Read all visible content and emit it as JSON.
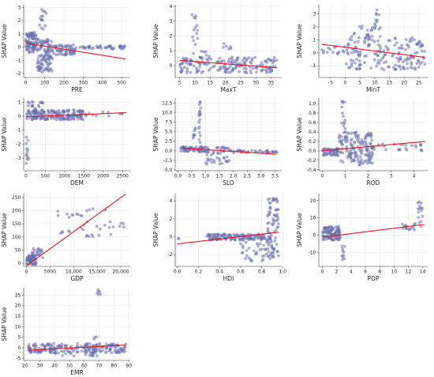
{
  "colors": {
    "points": "#6a6fae",
    "fit": "#e8141c",
    "grid": "#e9e9ef"
  },
  "chart_data": [
    {
      "type": "scatter",
      "xlabel": "PRE",
      "ylabel": "SHAP Value",
      "xlim": [
        -10,
        545
      ],
      "ylim": [
        -2.3,
        3.2
      ],
      "xticks": [
        "0",
        "100",
        "200",
        "300",
        "400",
        "500"
      ],
      "xtickValues": [
        0,
        100,
        200,
        300,
        400,
        500
      ],
      "yticks": [
        "-2",
        "-1",
        "0",
        "1",
        "2",
        "3"
      ],
      "ytickValues": [
        -2,
        -1,
        0,
        1,
        2,
        3
      ],
      "trend": {
        "x": [
          0,
          520
        ],
        "y": [
          0.3,
          -0.9
        ]
      },
      "clusters": [
        {
          "x": [
            0,
            60
          ],
          "y": [
            -0.4,
            1.1
          ],
          "n": 90
        },
        {
          "x": [
            60,
            140
          ],
          "y": [
            -1.9,
            0.6
          ],
          "n": 110
        },
        {
          "x": [
            70,
            110
          ],
          "y": [
            1.3,
            2.9
          ],
          "n": 14
        },
        {
          "x": [
            140,
            260
          ],
          "y": [
            -0.6,
            0.2
          ],
          "n": 60
        },
        {
          "x": [
            260,
            520
          ],
          "y": [
            -0.15,
            0.1
          ],
          "n": 45
        }
      ]
    },
    {
      "type": "scatter",
      "xlabel": "MaxT",
      "ylabel": "SHAP Value",
      "xlim": [
        3.5,
        38.5
      ],
      "ylim": [
        -0.8,
        4.1
      ],
      "xticks": [
        "5",
        "10",
        "15",
        "20",
        "25",
        "30",
        "35"
      ],
      "xtickValues": [
        5,
        10,
        15,
        20,
        25,
        30,
        35
      ],
      "yticks": [
        "0",
        "1",
        "2",
        "3",
        "4"
      ],
      "ytickValues": [
        0,
        1,
        2,
        3,
        4
      ],
      "trend": {
        "x": [
          5,
          37
        ],
        "y": [
          0.35,
          -0.15
        ]
      },
      "clusters": [
        {
          "x": [
            5,
            37
          ],
          "y": [
            -0.5,
            0.6
          ],
          "n": 180
        },
        {
          "x": [
            9,
            11
          ],
          "y": [
            0.8,
            3.9
          ],
          "n": 14
        },
        {
          "x": [
            19,
            22
          ],
          "y": [
            0.8,
            1.6
          ],
          "n": 6
        },
        {
          "x": [
            12,
            16
          ],
          "y": [
            0.5,
            1.0
          ],
          "n": 6
        }
      ]
    },
    {
      "type": "scatter",
      "xlabel": "MinT",
      "ylabel": "SHAP Value",
      "xlim": [
        -9,
        28
      ],
      "ylim": [
        -1.9,
        3.7
      ],
      "xticks": [
        "-5",
        "0",
        "5",
        "10",
        "15",
        "20",
        "25"
      ],
      "xtickValues": [
        -5,
        0,
        5,
        10,
        15,
        20,
        25
      ],
      "yticks": [
        "-1",
        "0",
        "1",
        "2",
        "3"
      ],
      "ytickValues": [
        -1,
        0,
        1,
        2,
        3
      ],
      "trend": {
        "x": [
          -8,
          27
        ],
        "y": [
          0.65,
          -0.35
        ]
      },
      "clusters": [
        {
          "x": [
            -8,
            0
          ],
          "y": [
            -0.1,
            0.5
          ],
          "n": 15
        },
        {
          "x": [
            0,
            27
          ],
          "y": [
            -1.3,
            1.2
          ],
          "n": 170
        },
        {
          "x": [
            2,
            12
          ],
          "y": [
            0.8,
            2.2
          ],
          "n": 25
        },
        {
          "x": [
            10,
            12
          ],
          "y": [
            2.2,
            3.4
          ],
          "n": 8
        }
      ]
    },
    {
      "type": "scatter",
      "xlabel": "DEM",
      "ylabel": "SHAP Value",
      "xlim": [
        -60,
        2700
      ],
      "ylim": [
        -3.9,
        1.3
      ],
      "xticks": [
        "0",
        "500",
        "1000",
        "1500",
        "2000",
        "2500"
      ],
      "xtickValues": [
        0,
        500,
        1000,
        1500,
        2000,
        2500
      ],
      "yticks": [
        "-3",
        "-2",
        "-1",
        "0",
        "1"
      ],
      "ytickValues": [
        -3,
        -2,
        -1,
        0,
        1
      ],
      "trend": {
        "x": [
          0,
          2600
        ],
        "y": [
          -0.05,
          0.25
        ]
      },
      "clusters": [
        {
          "x": [
            0,
            1500
          ],
          "y": [
            -0.25,
            0.45
          ],
          "n": 180
        },
        {
          "x": [
            50,
            450
          ],
          "y": [
            0.4,
            1.1
          ],
          "n": 20
        },
        {
          "x": [
            0,
            60
          ],
          "y": [
            -3.7,
            -1.0
          ],
          "n": 12
        },
        {
          "x": [
            1500,
            2600
          ],
          "y": [
            -0.05,
            0.3
          ],
          "n": 12
        }
      ]
    },
    {
      "type": "scatter",
      "xlabel": "SLO",
      "ylabel": "SHAP Value",
      "xlim": [
        -0.1,
        3.75
      ],
      "ylim": [
        -5.2,
        13.8
      ],
      "xticks": [
        "0.0",
        "0.5",
        "1.0",
        "1.5",
        "2.0",
        "2.5",
        "3.0",
        "3.5"
      ],
      "xtickValues": [
        0,
        0.5,
        1,
        1.5,
        2,
        2.5,
        3,
        3.5
      ],
      "yticks": [
        "-5.0",
        "-2.5",
        "0.0",
        "2.5",
        "5.0",
        "7.5",
        "10.0",
        "12.5"
      ],
      "ytickValues": [
        -5,
        -2.5,
        0,
        2.5,
        5,
        7.5,
        10,
        12.5
      ],
      "trend": {
        "x": [
          0.15,
          3.55
        ],
        "y": [
          0.7,
          -0.9
        ]
      },
      "clusters": [
        {
          "x": [
            0.1,
            1.0
          ],
          "y": [
            -0.3,
            1.2
          ],
          "n": 60
        },
        {
          "x": [
            0.75,
            0.85
          ],
          "y": [
            2,
            12.8
          ],
          "n": 18
        },
        {
          "x": [
            0.55,
            0.65
          ],
          "y": [
            1,
            6
          ],
          "n": 8
        },
        {
          "x": [
            1.0,
            1.9
          ],
          "y": [
            -3.5,
            1.0
          ],
          "n": 50
        },
        {
          "x": [
            1.9,
            3.6
          ],
          "y": [
            -0.5,
            0.2
          ],
          "n": 35
        }
      ]
    },
    {
      "type": "scatter",
      "xlabel": "ROD",
      "ylabel": "SHAP Value",
      "xlim": [
        -0.15,
        4.6
      ],
      "ylim": [
        -0.42,
        1.12
      ],
      "xticks": [
        "0",
        "1",
        "2",
        "3",
        "4"
      ],
      "xtickValues": [
        0,
        1,
        2,
        3,
        4
      ],
      "yticks": [
        "-0.4",
        "-0.2",
        "0.0",
        "0.2",
        "0.4",
        "0.6",
        "0.8",
        "1.0"
      ],
      "ytickValues": [
        -0.4,
        -0.2,
        0,
        0.2,
        0.4,
        0.6,
        0.8,
        1.0
      ],
      "trend": {
        "x": [
          0,
          4.5
        ],
        "y": [
          0.0,
          0.2
        ]
      },
      "clusters": [
        {
          "x": [
            0,
            0.7
          ],
          "y": [
            -0.1,
            0.05
          ],
          "n": 50
        },
        {
          "x": [
            0.7,
            2.2
          ],
          "y": [
            -0.3,
            0.4
          ],
          "n": 150
        },
        {
          "x": [
            0.85,
            1.0
          ],
          "y": [
            0.4,
            1.1
          ],
          "n": 14
        },
        {
          "x": [
            2.2,
            4.4
          ],
          "y": [
            0.0,
            0.15
          ],
          "n": 25
        }
      ]
    },
    {
      "type": "scatter",
      "xlabel": "GDP",
      "ylabel": "SHAP Value",
      "xlim": [
        -600,
        22000
      ],
      "ylim": [
        -12,
        265
      ],
      "xticks": [
        "0",
        "5000",
        "10,000",
        "15,000",
        "20,000"
      ],
      "xtickValues": [
        0,
        5000,
        10000,
        15000,
        20000
      ],
      "yticks": [
        "0",
        "50",
        "100",
        "150",
        "200",
        "250"
      ],
      "ytickValues": [
        0,
        50,
        100,
        150,
        200,
        250
      ],
      "trend": {
        "x": [
          0,
          21000
        ],
        "y": [
          -10,
          263
        ]
      },
      "clusters": [
        {
          "x": [
            0,
            2000
          ],
          "y": [
            -5,
            30
          ],
          "n": 60
        },
        {
          "x": [
            1000,
            3500
          ],
          "y": [
            10,
            55
          ],
          "n": 25
        },
        {
          "x": [
            4000,
            21000
          ],
          "y": [
            100,
            210
          ],
          "n": 40
        }
      ]
    },
    {
      "type": "scatter",
      "xlabel": "HDI",
      "ylabel": "SHAP Value",
      "xlim": [
        -0.02,
        0.99
      ],
      "ylim": [
        -3.3,
        4.8
      ],
      "xticks": [
        "0.0",
        "0.2",
        "0.4",
        "0.6",
        "0.8",
        "1.0"
      ],
      "xtickValues": [
        0,
        0.2,
        0.4,
        0.6,
        0.8,
        1.0
      ],
      "yticks": [
        "-2",
        "0",
        "2",
        "4"
      ],
      "ytickValues": [
        -2,
        0,
        2,
        4
      ],
      "trend": {
        "x": [
          0,
          0.96
        ],
        "y": [
          -0.8,
          0.5
        ]
      },
      "clusters": [
        {
          "x": [
            0.28,
            0.85
          ],
          "y": [
            -0.4,
            0.3
          ],
          "n": 120
        },
        {
          "x": [
            0.6,
            0.9
          ],
          "y": [
            -2.8,
            0.2
          ],
          "n": 50
        },
        {
          "x": [
            0.85,
            0.96
          ],
          "y": [
            -2.5,
            4.3
          ],
          "n": 80
        },
        {
          "x": [
            0,
            0.02
          ],
          "y": [
            -0.3,
            0.0
          ],
          "n": 2
        }
      ]
    },
    {
      "type": "scatter",
      "xlabel": "POP",
      "ylabel": "SHAP Value",
      "xlim": [
        -0.5,
        14.7
      ],
      "ylim": [
        -18,
        24
      ],
      "xticks": [
        "0",
        "2",
        "4",
        "6",
        "8",
        "10",
        "12",
        "14"
      ],
      "xtickValues": [
        0,
        2,
        4,
        6,
        8,
        10,
        12,
        14
      ],
      "yticks": [
        "-10",
        "0",
        "10",
        "20"
      ],
      "ytickValues": [
        -10,
        0,
        10,
        20
      ],
      "trend": {
        "x": [
          0,
          14.2
        ],
        "y": [
          -1.2,
          6.2
        ]
      },
      "clusters": [
        {
          "x": [
            0,
            2.5
          ],
          "y": [
            -3,
            5
          ],
          "n": 100
        },
        {
          "x": [
            2.7,
            3.2
          ],
          "y": [
            -16,
            -6
          ],
          "n": 10
        },
        {
          "x": [
            11,
            13
          ],
          "y": [
            3,
            7
          ],
          "n": 15
        },
        {
          "x": [
            13.3,
            14
          ],
          "y": [
            5,
            21
          ],
          "n": 15
        }
      ]
    },
    {
      "type": "scatter",
      "xlabel": "EMR",
      "ylabel": "SHAP Value",
      "xlim": [
        19,
        91
      ],
      "ylim": [
        -6,
        28.5
      ],
      "xticks": [
        "20",
        "30",
        "40",
        "50",
        "60",
        "70",
        "80",
        "90"
      ],
      "xtickValues": [
        20,
        30,
        40,
        50,
        60,
        70,
        80,
        90
      ],
      "yticks": [
        "-5",
        "0",
        "5",
        "10",
        "15",
        "20",
        "25"
      ],
      "ytickValues": [
        -5,
        0,
        5,
        10,
        15,
        20,
        25
      ],
      "trend": {
        "x": [
          22,
          88
        ],
        "y": [
          -1.2,
          1.3
        ]
      },
      "clusters": [
        {
          "x": [
            22,
            88
          ],
          "y": [
            -2.5,
            2.0
          ],
          "n": 200
        },
        {
          "x": [
            40,
            70
          ],
          "y": [
            -4,
            -1.5
          ],
          "n": 20
        },
        {
          "x": [
            68,
            71
          ],
          "y": [
            25,
            27.5
          ],
          "n": 6
        },
        {
          "x": [
            66,
            69
          ],
          "y": [
            4,
            6
          ],
          "n": 3
        }
      ]
    }
  ]
}
